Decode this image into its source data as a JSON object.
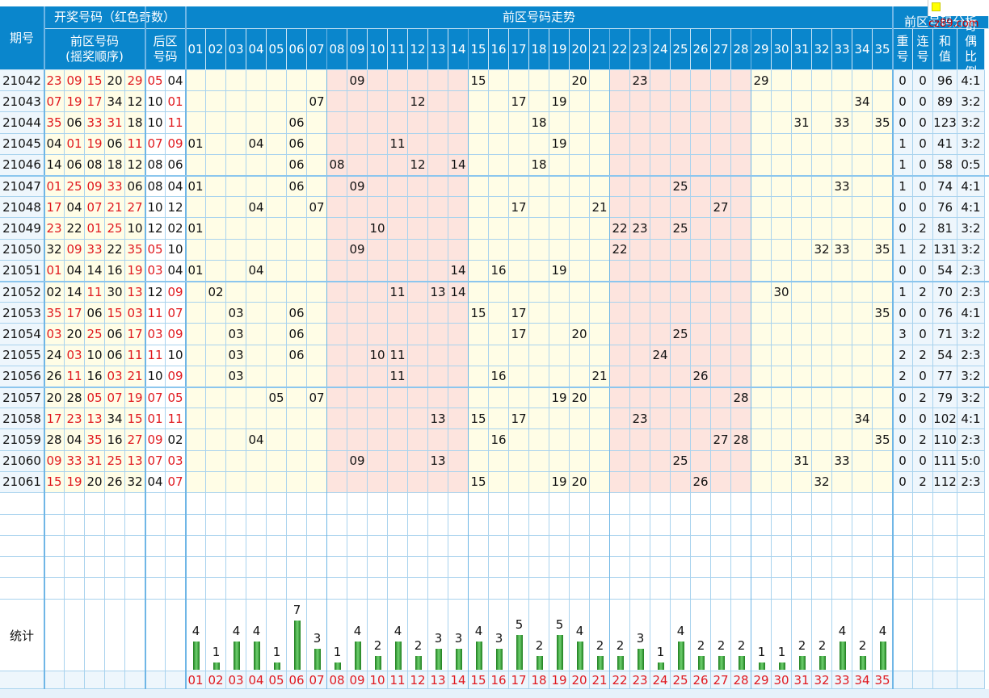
{
  "header": {
    "period": "期号",
    "open_group": "开奖号码（红色奇数）",
    "front_zone": "前区号码",
    "front_zone_sub": "(摇奖顺序)",
    "back_zone": "后区",
    "back_zone_sub": "号码",
    "trend": "前区号码走势",
    "analysis": "前区号码分析",
    "repeat": "重号",
    "consec": "连号",
    "sum": "和值",
    "ratio": "奇偶比例"
  },
  "columns": [
    "01",
    "02",
    "03",
    "04",
    "05",
    "06",
    "07",
    "08",
    "09",
    "10",
    "11",
    "12",
    "13",
    "14",
    "15",
    "16",
    "17",
    "18",
    "19",
    "20",
    "21",
    "22",
    "23",
    "24",
    "25",
    "26",
    "27",
    "28",
    "29",
    "30",
    "31",
    "32",
    "33",
    "34",
    "35"
  ],
  "rows": [
    {
      "p": "21042",
      "front": [
        "23",
        "09",
        "15",
        "20",
        "29"
      ],
      "back": [
        "05",
        "04"
      ],
      "rep": "0",
      "con": "0",
      "sum": "96",
      "ratio": "4:1"
    },
    {
      "p": "21043",
      "front": [
        "07",
        "19",
        "17",
        "34",
        "12"
      ],
      "back": [
        "10",
        "01"
      ],
      "rep": "0",
      "con": "0",
      "sum": "89",
      "ratio": "3:2"
    },
    {
      "p": "21044",
      "front": [
        "35",
        "06",
        "33",
        "31",
        "18"
      ],
      "back": [
        "10",
        "11"
      ],
      "rep": "0",
      "con": "0",
      "sum": "123",
      "ratio": "3:2"
    },
    {
      "p": "21045",
      "front": [
        "04",
        "01",
        "19",
        "06",
        "11"
      ],
      "back": [
        "07",
        "09"
      ],
      "rep": "1",
      "con": "0",
      "sum": "41",
      "ratio": "3:2"
    },
    {
      "p": "21046",
      "front": [
        "14",
        "06",
        "08",
        "18",
        "12"
      ],
      "back": [
        "08",
        "06"
      ],
      "rep": "1",
      "con": "0",
      "sum": "58",
      "ratio": "0:5"
    },
    {
      "p": "21047",
      "front": [
        "01",
        "25",
        "09",
        "33",
        "06"
      ],
      "back": [
        "08",
        "04"
      ],
      "rep": "1",
      "con": "0",
      "sum": "74",
      "ratio": "4:1"
    },
    {
      "p": "21048",
      "front": [
        "17",
        "04",
        "07",
        "21",
        "27"
      ],
      "back": [
        "10",
        "12"
      ],
      "rep": "0",
      "con": "0",
      "sum": "76",
      "ratio": "4:1"
    },
    {
      "p": "21049",
      "front": [
        "23",
        "22",
        "01",
        "25",
        "10"
      ],
      "back": [
        "12",
        "02"
      ],
      "rep": "0",
      "con": "2",
      "sum": "81",
      "ratio": "3:2"
    },
    {
      "p": "21050",
      "front": [
        "32",
        "09",
        "33",
        "22",
        "35"
      ],
      "back": [
        "05",
        "10"
      ],
      "rep": "1",
      "con": "2",
      "sum": "131",
      "ratio": "3:2"
    },
    {
      "p": "21051",
      "front": [
        "01",
        "04",
        "14",
        "16",
        "19"
      ],
      "back": [
        "03",
        "04"
      ],
      "rep": "0",
      "con": "0",
      "sum": "54",
      "ratio": "2:3"
    },
    {
      "p": "21052",
      "front": [
        "02",
        "14",
        "11",
        "30",
        "13"
      ],
      "back": [
        "12",
        "09"
      ],
      "rep": "1",
      "con": "2",
      "sum": "70",
      "ratio": "2:3"
    },
    {
      "p": "21053",
      "front": [
        "35",
        "17",
        "06",
        "15",
        "03"
      ],
      "back": [
        "11",
        "07"
      ],
      "rep": "0",
      "con": "0",
      "sum": "76",
      "ratio": "4:1"
    },
    {
      "p": "21054",
      "front": [
        "03",
        "20",
        "25",
        "06",
        "17"
      ],
      "back": [
        "03",
        "09"
      ],
      "rep": "3",
      "con": "0",
      "sum": "71",
      "ratio": "3:2"
    },
    {
      "p": "21055",
      "front": [
        "24",
        "03",
        "10",
        "06",
        "11"
      ],
      "back": [
        "11",
        "10"
      ],
      "rep": "2",
      "con": "2",
      "sum": "54",
      "ratio": "2:3"
    },
    {
      "p": "21056",
      "front": [
        "26",
        "11",
        "16",
        "03",
        "21"
      ],
      "back": [
        "10",
        "09"
      ],
      "rep": "2",
      "con": "0",
      "sum": "77",
      "ratio": "3:2"
    },
    {
      "p": "21057",
      "front": [
        "20",
        "28",
        "05",
        "07",
        "19"
      ],
      "back": [
        "07",
        "05"
      ],
      "rep": "0",
      "con": "2",
      "sum": "79",
      "ratio": "3:2"
    },
    {
      "p": "21058",
      "front": [
        "17",
        "23",
        "13",
        "34",
        "15"
      ],
      "back": [
        "01",
        "11"
      ],
      "rep": "0",
      "con": "0",
      "sum": "102",
      "ratio": "4:1"
    },
    {
      "p": "21059",
      "front": [
        "28",
        "04",
        "35",
        "16",
        "27"
      ],
      "back": [
        "09",
        "02"
      ],
      "rep": "0",
      "con": "2",
      "sum": "110",
      "ratio": "2:3"
    },
    {
      "p": "21060",
      "front": [
        "09",
        "33",
        "31",
        "25",
        "13"
      ],
      "back": [
        "07",
        "03"
      ],
      "rep": "0",
      "con": "0",
      "sum": "111",
      "ratio": "5:0"
    },
    {
      "p": "21061",
      "front": [
        "15",
        "19",
        "20",
        "26",
        "32"
      ],
      "back": [
        "04",
        "07"
      ],
      "rep": "0",
      "con": "2",
      "sum": "112",
      "ratio": "2:3"
    }
  ],
  "stats_label": "统计",
  "counts": [
    "4",
    "1",
    "4",
    "4",
    "1",
    "7",
    "3",
    "1",
    "4",
    "2",
    "4",
    "2",
    "3",
    "3",
    "4",
    "3",
    "5",
    "2",
    "5",
    "4",
    "2",
    "2",
    "3",
    "1",
    "4",
    "2",
    "2",
    "2",
    "1",
    "1",
    "2",
    "2",
    "4",
    "2",
    "4"
  ],
  "watermark": "cz89.com",
  "colors": {
    "header": "#0a86cc",
    "odd": "#e0191f",
    "yellow": "#fffde6",
    "pink": "#fde4de",
    "white": "#ffffff",
    "row_bg": "#eef6fc",
    "bar": "#3fae3f"
  }
}
